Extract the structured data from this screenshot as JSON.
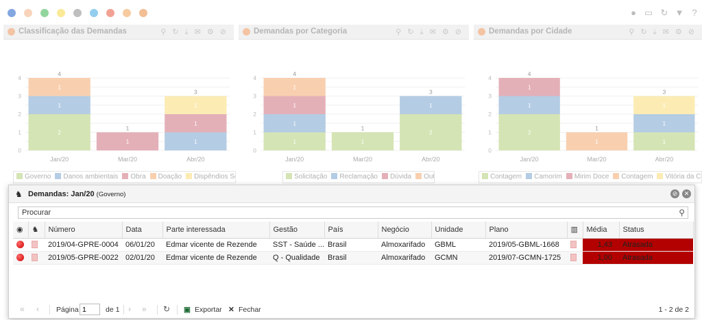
{
  "toolbar": {
    "filter_dots": [
      "#1e5fc8",
      "#f4b183",
      "#37b24d",
      "#f5d742",
      "#8a8a8a",
      "#3da5e0",
      "#e8553e",
      "#f0a050",
      "#e8883a"
    ],
    "right_icons": [
      "circle-icon",
      "screen-icon",
      "refresh-icon",
      "filter-icon",
      "help-icon"
    ]
  },
  "panels": [
    {
      "title": "Classificação das Demandas",
      "chart_data": {
        "type": "bar",
        "stacked": true,
        "categories": [
          "Jan/20",
          "Mar/20",
          "Abr/20"
        ],
        "series": [
          {
            "name": "Governo",
            "color": "#d4e4b4",
            "values": [
              2,
              0,
              0
            ]
          },
          {
            "name": "Danos ambientais",
            "color": "#b4cce4",
            "values": [
              1,
              0,
              1
            ]
          },
          {
            "name": "Obra",
            "color": "#e4b0b8",
            "values": [
              0,
              1,
              1
            ]
          },
          {
            "name": "Doação",
            "color": "#f8d0b0",
            "values": [
              1,
              0,
              0
            ]
          },
          {
            "name": "Dispêndios Sociais",
            "color": "#fcecb4",
            "values": [
              0,
              0,
              1
            ]
          }
        ],
        "totals": [
          4,
          1,
          3
        ],
        "yticks": [
          0,
          0.5,
          1,
          1.5,
          2,
          2.5,
          3,
          3.5,
          4
        ],
        "ylim": [
          0,
          4
        ]
      }
    },
    {
      "title": "Demandas por Categoria",
      "chart_data": {
        "type": "bar",
        "stacked": true,
        "categories": [
          "Jan/20",
          "Mar/20",
          "Abr/20"
        ],
        "series": [
          {
            "name": "Solicitação",
            "color": "#d4e4b4",
            "values": [
              1,
              1,
              2
            ]
          },
          {
            "name": "Reclamação",
            "color": "#b4cce4",
            "values": [
              1,
              0,
              1
            ]
          },
          {
            "name": "Dúvida",
            "color": "#e4b0b8",
            "values": [
              1,
              0,
              0
            ]
          },
          {
            "name": "Outros",
            "color": "#f8d0b0",
            "values": [
              1,
              0,
              0
            ]
          }
        ],
        "totals": [
          4,
          1,
          3
        ],
        "yticks": [
          0,
          0.5,
          1,
          1.5,
          2,
          2.5,
          3,
          3.5,
          4
        ],
        "ylim": [
          0,
          4
        ]
      }
    },
    {
      "title": "Demandas por Cidade",
      "chart_data": {
        "type": "bar",
        "stacked": true,
        "categories": [
          "Jan/20",
          "Mar/20",
          "Abr/20"
        ],
        "series": [
          {
            "name": "Contagem",
            "color": "#d4e4b4",
            "values": [
              2,
              0,
              1
            ]
          },
          {
            "name": "Camorim",
            "color": "#b4cce4",
            "values": [
              1,
              0,
              1
            ]
          },
          {
            "name": "Mirim Doce",
            "color": "#e4b0b8",
            "values": [
              1,
              0,
              0
            ]
          },
          {
            "name": "Contagem",
            "color": "#f8d0b0",
            "values": [
              0,
              1,
              0
            ]
          },
          {
            "name": "Vitória da Conquista",
            "color": "#fcecb4",
            "values": [
              0,
              0,
              1
            ]
          }
        ],
        "totals": [
          4,
          1,
          3
        ],
        "yticks": [
          0,
          0.5,
          1,
          1.5,
          2,
          2.5,
          3,
          3.5,
          4
        ],
        "ylim": [
          0,
          4
        ]
      }
    }
  ],
  "modal": {
    "title": "Demandas: Jan/20",
    "subtitle": "(Governo)",
    "search_placeholder": "Procurar",
    "columns": [
      "Número",
      "Data",
      "Parte interessada",
      "Gestão",
      "País",
      "Negócio",
      "Unidade",
      "Plano",
      "Média",
      "Status"
    ],
    "rows": [
      {
        "numero": "2019/04-GPRE-0004",
        "data": "06/01/20",
        "parte": "Edmar vicente de Rezende",
        "gestao": "SST - Saúde ...",
        "pais": "Brasil",
        "negocio": "Almoxarifado",
        "unidade": "GBML",
        "plano": "2019/05-GBML-1668",
        "media": "1,43",
        "status": "Atrasada"
      },
      {
        "numero": "2019/05-GPRE-0022",
        "data": "02/01/20",
        "parte": "Edmar vicente de Rezende",
        "gestao": "Q - Qualidade",
        "pais": "Brasil",
        "negocio": "Almoxarifado",
        "unidade": "GCMN",
        "plano": "2019/07-GCMN-1725",
        "media": "1,00",
        "status": "Atrasada"
      }
    ],
    "pager": {
      "page_label": "Página",
      "page_value": "1",
      "of_label": "de 1",
      "export_label": "Exportar",
      "close_label": "Fechar",
      "range": "1 - 2 de 2"
    }
  }
}
